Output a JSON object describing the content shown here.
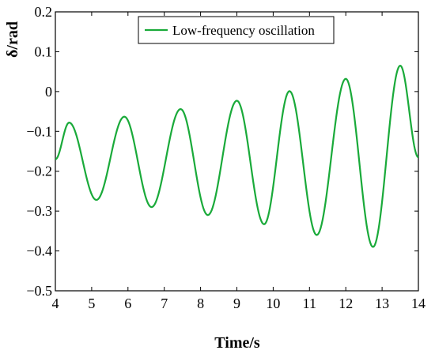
{
  "chart_data": {
    "type": "line",
    "xlabel": "Time/s",
    "ylabel": "δ/rad",
    "xlim": [
      4,
      14
    ],
    "ylim": [
      -0.5,
      0.2
    ],
    "xticks": [
      4,
      5,
      6,
      7,
      8,
      9,
      10,
      11,
      12,
      13,
      14
    ],
    "xtick_labels": [
      "4",
      "5",
      "6",
      "7",
      "8",
      "9",
      "10",
      "11",
      "12",
      "13",
      "14"
    ],
    "yticks": [
      0.2,
      0.1,
      0,
      -0.1,
      -0.2,
      -0.3,
      -0.4,
      -0.5
    ],
    "ytick_labels": [
      "0.2",
      "0.1",
      "0",
      "−0.1",
      "−0.2",
      "−0.3",
      "−0.4",
      "−0.5"
    ],
    "grid": false,
    "legend_position": "top-center",
    "series": [
      {
        "name": "Low-frequency oscillation",
        "color": "#1aaa3a",
        "x": [
          4.0,
          4.38,
          5.13,
          5.9,
          6.65,
          7.45,
          8.2,
          9.0,
          9.75,
          10.45,
          11.2,
          12.0,
          12.75,
          13.5,
          14.0
        ],
        "y": [
          -0.17,
          -0.078,
          -0.272,
          -0.063,
          -0.29,
          -0.044,
          -0.31,
          -0.023,
          -0.333,
          0.001,
          -0.36,
          0.032,
          -0.39,
          0.065,
          -0.165
        ]
      }
    ]
  }
}
